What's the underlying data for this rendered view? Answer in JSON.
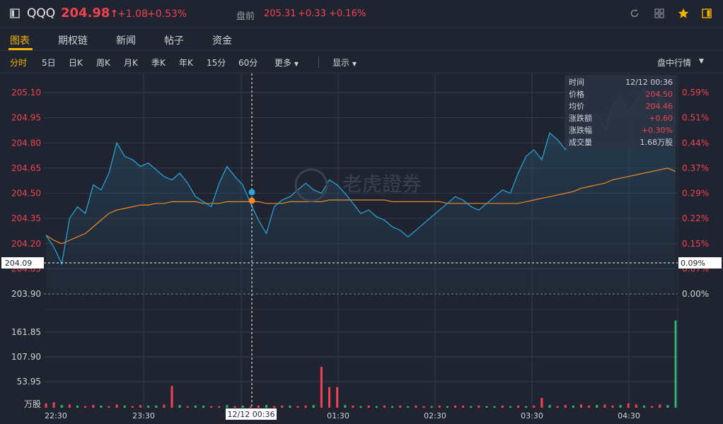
{
  "header": {
    "symbol": "QQQ",
    "price": "204.98",
    "price_arrow": "↑",
    "change": "+1.08",
    "change_pct": "+0.53%",
    "premarket_label": "盘前",
    "premarket_price": "205.31",
    "premarket_change": "+0.33",
    "premarket_pct": "+0.16%"
  },
  "tabs": [
    "图表",
    "期权链",
    "新闻",
    "帖子",
    "资金"
  ],
  "periods": [
    "分时",
    "5日",
    "日K",
    "周K",
    "月K",
    "季K",
    "年K",
    "15分",
    "60分",
    "更多",
    "显示"
  ],
  "right_menu": "盘中行情",
  "tooltip": {
    "time_label": "时间",
    "time_value": "12/12 00:36",
    "price_label": "价格",
    "price_value": "204.50",
    "avg_label": "均价",
    "avg_value": "204.46",
    "chg_label": "涨跌额",
    "chg_value": "+0.60",
    "pct_label": "涨跌幅",
    "pct_value": "+0.30%",
    "vol_label": "成交量",
    "vol_value": "1.68万股"
  },
  "watermark": "老虎證券",
  "crosshair": {
    "price_label": "204.09",
    "pct_label": "0.09%",
    "time_label": "12/12 00:36"
  },
  "colors": {
    "up": "#f0434f",
    "down": "#2bb673",
    "price_line": "#29a8e0",
    "avg_line": "#f08a24",
    "accent": "#f5b400"
  },
  "chart_data": {
    "type": "line",
    "x_ticks": [
      "22:30",
      "23:30",
      "00:30",
      "01:30",
      "02:30",
      "03:30",
      "04:30"
    ],
    "y_ticks": [
      "205.10",
      "204.95",
      "204.80",
      "204.65",
      "204.50",
      "204.35",
      "204.20",
      "204.05",
      "203.90"
    ],
    "y_pct_ticks": [
      "0.59%",
      "0.51%",
      "0.44%",
      "0.37%",
      "0.29%",
      "0.22%",
      "0.15%",
      "0.07%",
      "0.00%"
    ],
    "ylim": [
      203.9,
      205.1
    ],
    "reference_price": 203.9,
    "volume_ticks": [
      "161.85",
      "107.90",
      "53.95",
      "万股"
    ],
    "volume_max": 161.85,
    "series": [
      {
        "values": [
          204.25,
          204.18,
          204.08,
          204.35,
          204.42,
          204.38,
          204.55,
          204.52,
          204.62,
          204.8,
          204.72,
          204.7,
          204.66,
          204.68,
          204.64,
          204.6,
          204.58,
          204.62,
          204.56,
          204.48,
          204.45,
          204.42,
          204.56,
          204.66,
          204.6,
          204.55,
          204.44,
          204.34,
          204.26,
          204.42,
          204.46,
          204.48,
          204.52,
          204.56,
          204.52,
          204.5,
          204.58,
          204.55,
          204.5,
          204.44,
          204.38,
          204.4,
          204.36,
          204.34,
          204.3,
          204.28,
          204.24,
          204.28,
          204.32,
          204.36,
          204.4,
          204.44,
          204.48,
          204.46,
          204.42,
          204.4,
          204.44,
          204.48,
          204.52,
          204.5,
          204.62,
          204.72,
          204.76,
          204.7,
          204.86,
          204.82,
          204.76,
          204.9,
          204.85,
          204.92,
          204.98,
          204.88,
          205.02,
          205.08,
          204.98,
          205.05,
          205.12,
          205.0,
          205.08,
          205.04,
          204.94
        ],
        "avg": [
          204.25,
          204.22,
          204.2,
          204.22,
          204.24,
          204.26,
          204.3,
          204.34,
          204.38,
          204.4,
          204.41,
          204.42,
          204.43,
          204.43,
          204.44,
          204.44,
          204.45,
          204.45,
          204.45,
          204.45,
          204.44,
          204.44,
          204.44,
          204.45,
          204.45,
          204.45,
          204.45,
          204.45,
          204.44,
          204.44,
          204.44,
          204.45,
          204.45,
          204.45,
          204.45,
          204.45,
          204.46,
          204.46,
          204.46,
          204.46,
          204.46,
          204.46,
          204.46,
          204.46,
          204.45,
          204.45,
          204.45,
          204.45,
          204.45,
          204.45,
          204.45,
          204.44,
          204.44,
          204.44,
          204.44,
          204.44,
          204.44,
          204.44,
          204.44,
          204.44,
          204.44,
          204.45,
          204.46,
          204.47,
          204.48,
          204.49,
          204.5,
          204.51,
          204.53,
          204.54,
          204.55,
          204.56,
          204.58,
          204.59,
          204.6,
          204.61,
          204.62,
          204.63,
          204.64,
          204.65,
          204.63
        ]
      }
    ],
    "volume": {
      "values": [
        8,
        10,
        5,
        6,
        4,
        3,
        5,
        4,
        3,
        6,
        4,
        3,
        5,
        4,
        4,
        6,
        40,
        5,
        3,
        4,
        4,
        3,
        3,
        5,
        3,
        4,
        3,
        4,
        5,
        3,
        4,
        4,
        3,
        4,
        5,
        75,
        38,
        38,
        5,
        4,
        3,
        4,
        3,
        4,
        3,
        4,
        3,
        4,
        3,
        3,
        4,
        3,
        4,
        4,
        3,
        4,
        3,
        3,
        4,
        3,
        4,
        3,
        4,
        18,
        5,
        3,
        5,
        4,
        6,
        4,
        5,
        6,
        4,
        5,
        8,
        6,
        4,
        3,
        6,
        5,
        160
      ],
      "up": [
        1,
        1,
        0,
        1,
        0,
        1,
        1,
        0,
        1,
        1,
        0,
        1,
        1,
        0,
        0,
        1,
        1,
        0,
        1,
        0,
        0,
        1,
        1,
        0,
        1,
        0,
        1,
        1,
        0,
        1,
        1,
        0,
        1,
        1,
        0,
        1,
        1,
        1,
        0,
        1,
        0,
        1,
        0,
        1,
        0,
        1,
        0,
        1,
        1,
        0,
        1,
        0,
        1,
        1,
        0,
        1,
        0,
        0,
        1,
        0,
        1,
        0,
        1,
        1,
        0,
        1,
        1,
        0,
        1,
        1,
        0,
        1,
        1,
        0,
        1,
        1,
        0,
        1,
        1,
        0,
        0
      ]
    }
  }
}
